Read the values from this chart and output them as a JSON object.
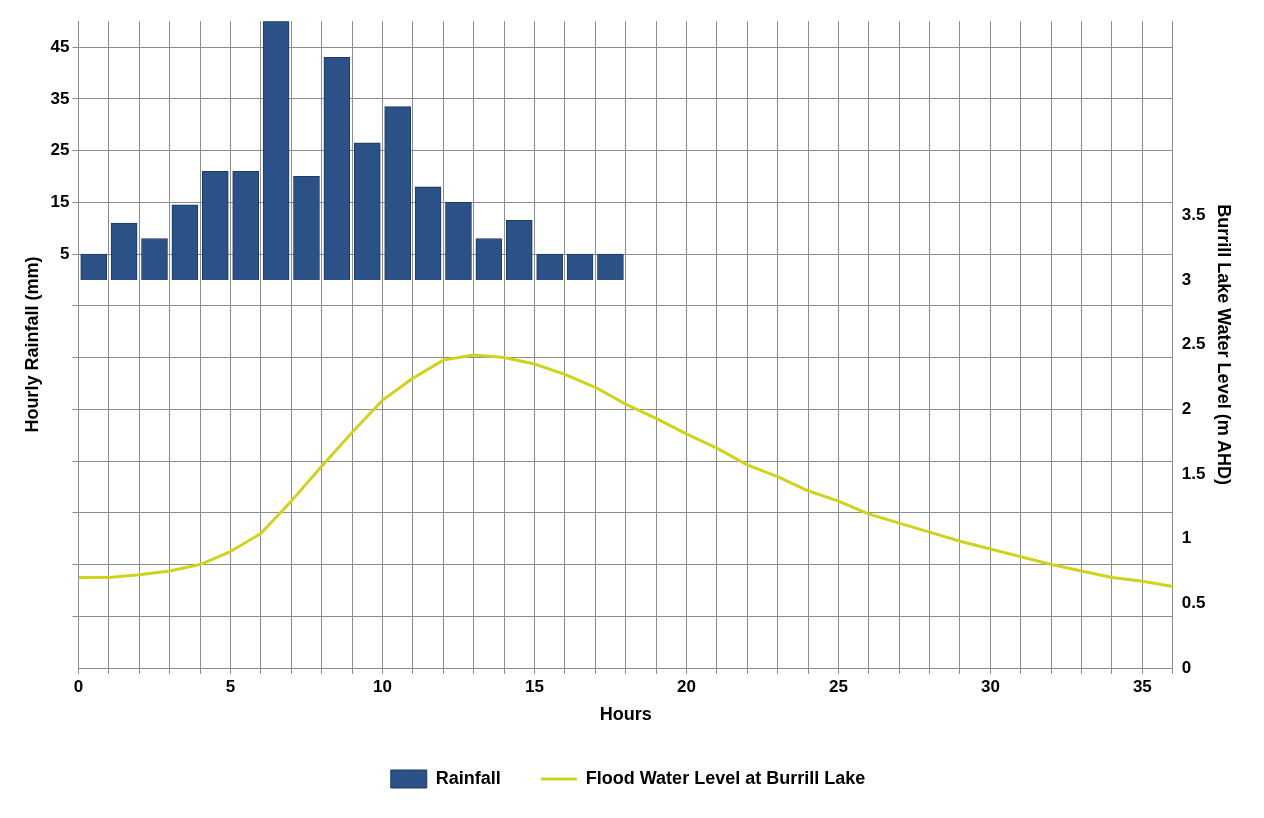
{
  "chart_data": {
    "type": "bar",
    "xlabel": "Hours",
    "ylabel": "Hourly Rainfall (mm)",
    "y2label": "Burrill Lake Water Level (m AHD)",
    "xlim": [
      0,
      36
    ],
    "xticks": [
      0,
      {
        "value": 1,
        "label": null
      },
      {
        "value": 2,
        "label": null
      },
      {
        "value": 3,
        "label": null
      },
      {
        "value": 4,
        "label": null
      },
      5,
      {
        "value": 6,
        "label": null
      },
      {
        "value": 7,
        "label": null
      },
      {
        "value": 8,
        "label": null
      },
      {
        "value": 9,
        "label": null
      },
      10,
      {
        "value": 11,
        "label": null
      },
      {
        "value": 12,
        "label": null
      },
      {
        "value": 13,
        "label": null
      },
      {
        "value": 14,
        "label": null
      },
      15,
      {
        "value": 16,
        "label": null
      },
      {
        "value": 17,
        "label": null
      },
      {
        "value": 18,
        "label": null
      },
      {
        "value": 19,
        "label": null
      },
      20,
      {
        "value": 21,
        "label": null
      },
      {
        "value": 22,
        "label": null
      },
      {
        "value": 23,
        "label": null
      },
      {
        "value": 24,
        "label": null
      },
      25,
      {
        "value": 26,
        "label": null
      },
      {
        "value": 27,
        "label": null
      },
      {
        "value": 28,
        "label": null
      },
      {
        "value": 29,
        "label": null
      },
      30,
      {
        "value": 31,
        "label": null
      },
      {
        "value": 32,
        "label": null
      },
      {
        "value": 33,
        "label": null
      },
      {
        "value": 34,
        "label": null
      },
      35,
      {
        "value": 36,
        "label": null
      }
    ],
    "ylim": [
      -75,
      50
    ],
    "yticks": [
      {
        "value": -65,
        "label": null
      },
      {
        "value": -55,
        "label": null
      },
      {
        "value": -45,
        "label": null
      },
      {
        "value": -35,
        "label": null
      },
      {
        "value": -25,
        "label": null
      },
      {
        "value": -15,
        "label": null
      },
      {
        "value": -5,
        "label": null
      },
      5,
      15,
      25,
      35,
      45
    ],
    "y2lim": [
      0,
      5
    ],
    "y2ticks": [
      0,
      0.5,
      1,
      1.5,
      2,
      2.5,
      3,
      3.5
    ],
    "grid": true,
    "legend": "bottom",
    "marker": "none",
    "series": [
      {
        "name": "Rainfall",
        "color": "#2b5186",
        "x": [
          0.5,
          1.5,
          2.5,
          3.5,
          4.5,
          5.5,
          6.5,
          7.5,
          8.5,
          9.5,
          10.5,
          11.5,
          12.5,
          13.5,
          14.5,
          15.5,
          16.5,
          17.5
        ],
        "values": [
          5,
          11,
          8,
          14.5,
          21,
          21,
          50,
          20,
          43,
          26.5,
          33.5,
          18,
          15,
          8,
          11.5,
          5,
          5,
          5
        ]
      },
      {
        "name": "Flood Water Level at Burrill Lake",
        "type": "line",
        "axis": "y2",
        "color": "#d2d21e",
        "x": [
          0,
          1,
          2,
          3,
          4,
          5,
          6,
          7,
          8,
          9,
          10,
          11,
          12,
          13,
          14,
          15,
          16,
          17,
          18,
          19,
          20,
          21,
          22,
          23,
          24,
          25,
          26,
          27,
          28,
          29,
          30,
          31,
          32,
          33,
          34,
          35,
          36
        ],
        "values": [
          0.7,
          0.7,
          0.72,
          0.75,
          0.8,
          0.9,
          1.04,
          1.29,
          1.56,
          1.82,
          2.07,
          2.24,
          2.38,
          2.42,
          2.4,
          2.35,
          2.27,
          2.17,
          2.04,
          1.93,
          1.81,
          1.7,
          1.57,
          1.48,
          1.37,
          1.29,
          1.19,
          1.12,
          1.05,
          0.98,
          0.92,
          0.86,
          0.8,
          0.75,
          0.7,
          0.67,
          0.63
        ]
      }
    ]
  }
}
